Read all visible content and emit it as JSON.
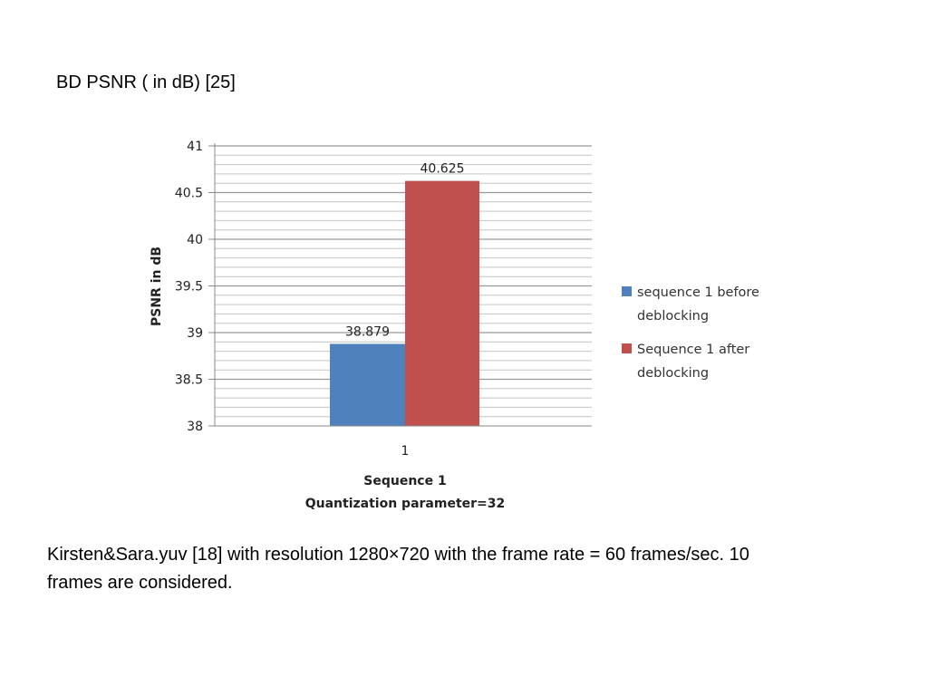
{
  "slide": {
    "title": "BD PSNR ( in dB) [25]",
    "caption": "Kirsten&Sara.yuv [18] with resolution 1280×720 with the frame rate = 60 frames/sec. 10 frames are considered."
  },
  "chart_data": {
    "type": "bar",
    "categories": [
      "1"
    ],
    "series": [
      {
        "name": "sequence 1 before deblocking",
        "legend_lines": [
          "sequence 1 before",
          "deblocking"
        ],
        "values": [
          38.879
        ],
        "label": "38.879",
        "color": "#4f81bd"
      },
      {
        "name": "Sequence 1 after deblocking",
        "legend_lines": [
          "Sequence 1 after",
          "deblocking"
        ],
        "values": [
          40.625
        ],
        "label": "40.625",
        "color": "#c0504d"
      }
    ],
    "ylabel": "PSNR in dB",
    "xlabel_lines": [
      "Sequence 1",
      "Quantization parameter=32"
    ],
    "ylim": [
      38,
      41
    ],
    "yticks": [
      "38",
      "38.5",
      "39",
      "39.5",
      "40",
      "40.5",
      "41"
    ],
    "ytick_values": [
      38,
      38.5,
      39,
      39.5,
      40,
      40.5,
      41
    ],
    "minor_step": 0.1,
    "grid": true,
    "legend_position": "right"
  }
}
